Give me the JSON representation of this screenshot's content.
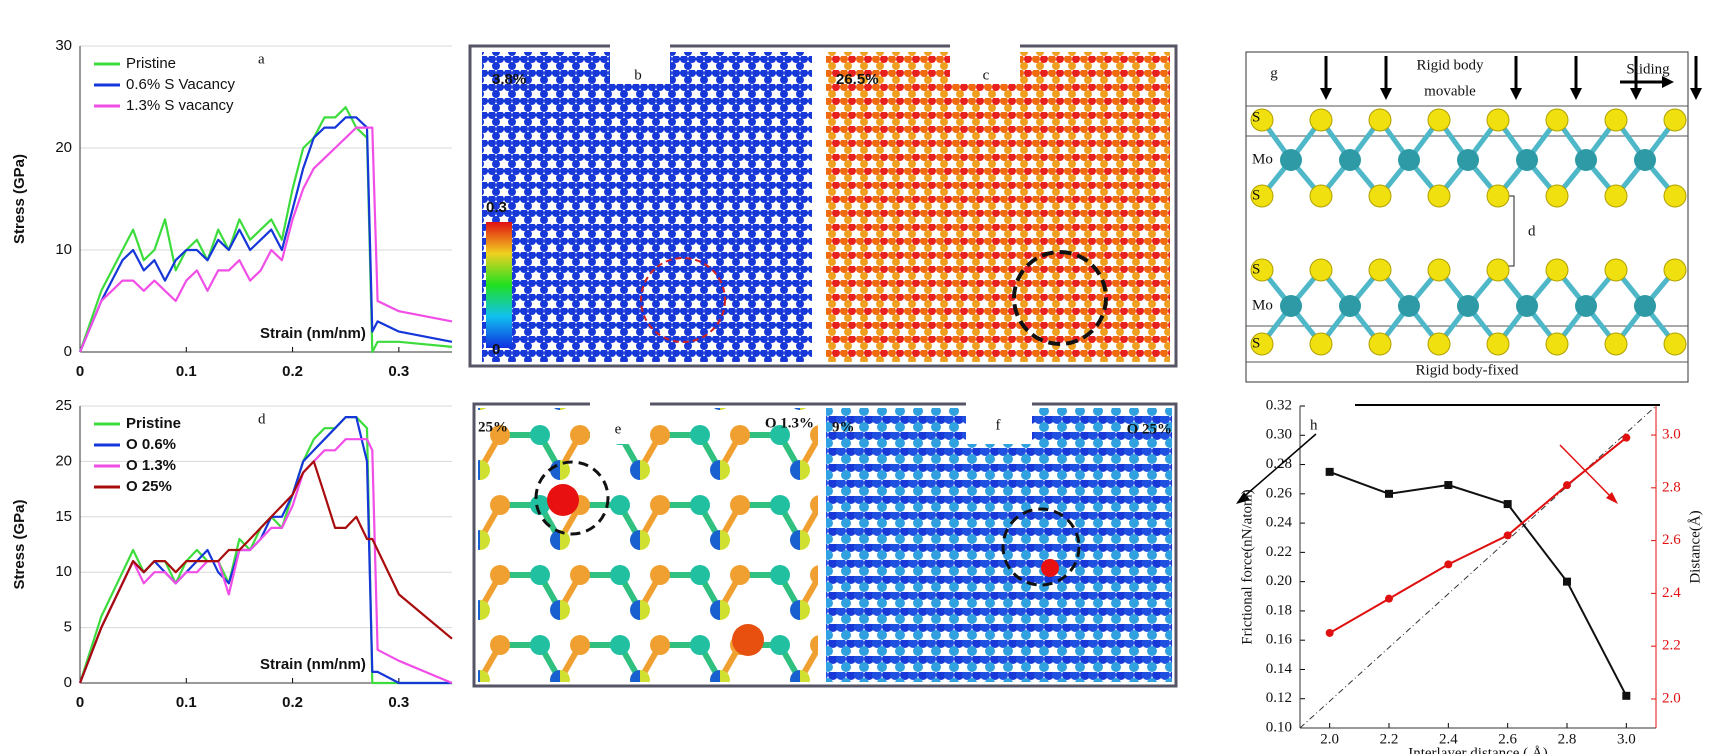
{
  "chart_data": [
    {
      "type": "line",
      "panel_label": "a",
      "xlabel": "Strain (nm/nm)",
      "ylabel": "Stress (GPa)",
      "x": [
        0,
        0.02,
        0.04,
        0.05,
        0.06,
        0.07,
        0.08,
        0.09,
        0.1,
        0.11,
        0.12,
        0.13,
        0.14,
        0.15,
        0.16,
        0.17,
        0.18,
        0.19,
        0.2,
        0.21,
        0.22,
        0.23,
        0.24,
        0.25,
        0.26,
        0.27,
        0.275,
        0.28,
        0.3,
        0.35
      ],
      "xlim": [
        0,
        0.35
      ],
      "xticks": [
        0,
        0.1,
        0.2,
        0.3
      ],
      "ylim": [
        0,
        30
      ],
      "yticks": [
        0,
        10,
        20,
        30
      ],
      "grid": true,
      "legend": "top-left",
      "series": [
        {
          "name": "Pristine",
          "color": "#3ddc3d",
          "values": [
            0,
            6,
            10,
            12,
            9,
            10,
            13,
            8,
            10,
            11,
            9,
            12,
            10,
            13,
            11,
            12,
            13,
            11,
            16,
            20,
            21,
            23,
            23,
            24,
            22,
            21,
            0,
            1,
            1,
            0.5
          ]
        },
        {
          "name": "0.6% S Vacancy",
          "color": "#1536d8",
          "values": [
            0,
            5,
            9,
            10,
            8,
            9,
            7,
            9,
            10,
            10,
            9,
            11,
            10,
            12,
            10,
            11,
            12,
            10,
            14,
            18,
            21,
            22,
            22,
            23,
            23,
            22,
            2,
            3,
            2,
            1
          ]
        },
        {
          "name": "1.3% S vacancy",
          "color": "#f04ee6",
          "values": [
            0,
            5,
            7,
            7,
            6,
            7,
            6,
            5,
            7,
            8,
            6,
            8,
            8,
            9,
            7,
            8,
            10,
            9,
            13,
            16,
            18,
            19,
            20,
            21,
            22,
            22,
            22,
            5,
            4,
            3
          ]
        }
      ]
    },
    {
      "type": "line",
      "panel_label": "d",
      "xlabel": "Strain (nm/nm)",
      "ylabel": "Stress (GPa)",
      "x": [
        0,
        0.02,
        0.04,
        0.05,
        0.06,
        0.07,
        0.08,
        0.09,
        0.1,
        0.11,
        0.12,
        0.13,
        0.14,
        0.15,
        0.16,
        0.17,
        0.18,
        0.19,
        0.2,
        0.21,
        0.22,
        0.23,
        0.24,
        0.25,
        0.26,
        0.27,
        0.275,
        0.28,
        0.3,
        0.35
      ],
      "xlim": [
        0,
        0.35
      ],
      "xticks": [
        0,
        0.1,
        0.2,
        0.3
      ],
      "ylim": [
        0,
        25
      ],
      "yticks": [
        0,
        5,
        10,
        15,
        20,
        25
      ],
      "grid": true,
      "legend": "top-left",
      "series": [
        {
          "name": "Pristine",
          "color": "#3ddc3d",
          "values": [
            0,
            6,
            10,
            12,
            10,
            11,
            11,
            9,
            11,
            12,
            11,
            11,
            9,
            13,
            12,
            14,
            15,
            14,
            17,
            20,
            22,
            23,
            23,
            24,
            24,
            23,
            0,
            0,
            0,
            0
          ]
        },
        {
          "name": "O 0.6%",
          "color": "#1536d8",
          "values": [
            0,
            5,
            9,
            11,
            10,
            11,
            10,
            9,
            10,
            11,
            12,
            10,
            9,
            12,
            12,
            13,
            15,
            15,
            17,
            20,
            21,
            22,
            23,
            24,
            24,
            20,
            1,
            1,
            0,
            0
          ]
        },
        {
          "name": "O 1.3%",
          "color": "#f04ee6",
          "values": [
            0,
            5,
            9,
            11,
            9,
            10,
            10,
            9,
            10,
            10,
            11,
            11,
            8,
            12,
            12,
            13,
            14,
            14,
            16,
            19,
            20,
            21,
            21,
            22,
            22,
            22,
            21,
            3,
            2,
            0
          ]
        },
        {
          "name": "O 25%",
          "color": "#a80c0c",
          "values": [
            0,
            5,
            9,
            11,
            10,
            11,
            11,
            10,
            11,
            11,
            11,
            11,
            12,
            12,
            13,
            14,
            15,
            16,
            17,
            19,
            20,
            17,
            14,
            14,
            15,
            13,
            13,
            12,
            8,
            4
          ]
        }
      ]
    },
    {
      "type": "line",
      "panel_label": "h",
      "xlabel": "Interlayer distance ( Å)",
      "ylabel": "Frictional force(nN/atom)",
      "y2label": "Distance(Å)",
      "x": [
        2.0,
        2.2,
        2.4,
        2.6,
        2.8,
        3.0
      ],
      "xlim": [
        1.9,
        3.1
      ],
      "xticks": [
        {
          "value": 2,
          "label": "2.0"
        },
        2.2,
        2.4,
        2.6,
        2.8,
        {
          "value": 3,
          "label": "3.0"
        }
      ],
      "ylim": [
        0.1,
        0.32
      ],
      "yticks": [
        {
          "value": 0.1,
          "label": "0.10"
        },
        0.12,
        0.14,
        0.16,
        0.18,
        {
          "value": 0.2,
          "label": "0.20"
        },
        0.22,
        0.24,
        0.26,
        0.28,
        {
          "value": 0.3,
          "label": "0.30"
        },
        0.32
      ],
      "y2lim": [
        1.89,
        3.11
      ],
      "y2ticks": [
        {
          "value": 2,
          "label": "2.0"
        },
        2.2,
        2.4,
        2.6,
        2.8,
        {
          "value": 3,
          "label": "3.0"
        }
      ],
      "grid": false,
      "series": [
        {
          "name": "Frictional force",
          "color": "#111111",
          "marker": "square",
          "values": [
            0.275,
            0.26,
            0.266,
            0.253,
            0.2,
            0.122
          ]
        },
        {
          "name": "Distance",
          "color": "#e01010",
          "marker": "circle",
          "axis": "y2",
          "values": [
            2.25,
            2.38,
            2.51,
            2.62,
            2.81,
            2.99
          ]
        }
      ]
    }
  ],
  "figure_panels": {
    "b": {
      "label": "b",
      "strain": "3.8%",
      "colorbar_max": "0.3",
      "colorbar_min": "0"
    },
    "c": {
      "label": "c",
      "strain": "26.5%"
    },
    "e": {
      "label": "e",
      "strain": "25%",
      "tag": "O 1.3%"
    },
    "f": {
      "label": "f",
      "strain": "9%",
      "tag": "O 25%"
    },
    "g": {
      "label": "g",
      "top_label": "Rigid body",
      "top_label_2": "movable",
      "sliding": "Sliding",
      "atoms": [
        "S",
        "Mo",
        "S",
        "S",
        "Mo",
        "S"
      ],
      "gap": "d",
      "bottom_label": "Rigid body-fixed"
    }
  }
}
